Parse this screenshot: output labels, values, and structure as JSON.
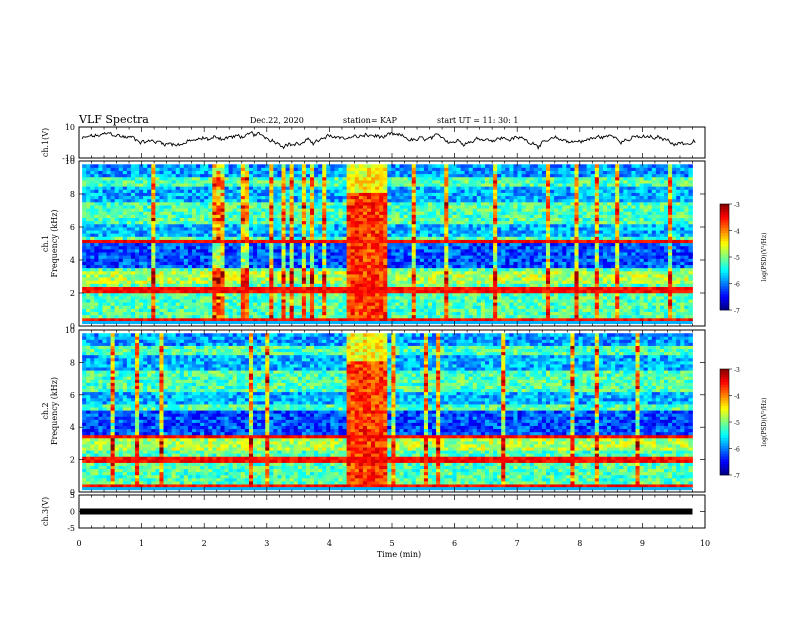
{
  "header": {
    "title": "VLF Spectra",
    "date": "Dec.22, 2020",
    "station": "station= KAP",
    "start": "start  UT =   11: 30: 1"
  },
  "chart_data": [
    {
      "type": "line",
      "panel": "ch1-waveform",
      "ylabel": "ch.1(V)",
      "ylim": [
        -10,
        10
      ],
      "yticks": [
        "10",
        "-10"
      ],
      "xlim": [
        0,
        10
      ],
      "note_series": "noisy waveform, mean ~2 V, varying between about -2 and 8 V"
    },
    {
      "type": "heatmap",
      "panel": "ch1-spectrogram",
      "ylabel": "ch.1\nFrequency  (kHz)",
      "ylim": [
        0,
        10
      ],
      "yticks": [
        "0",
        "2",
        "4",
        "6",
        "8",
        "10"
      ],
      "xlim": [
        0,
        10
      ],
      "colorbar": {
        "label": "log(PSD)(V²/Hz)",
        "range": [
          -7,
          -3
        ],
        "ticks": [
          "-3",
          "-4",
          "-5",
          "-6",
          "-7"
        ],
        "colormap": "jet"
      },
      "features": "broadband burst between ~4.3 and ~4.9 min; strong narrowband line near 5.2 kHz and 2.2 kHz"
    },
    {
      "type": "heatmap",
      "panel": "ch2-spectrogram",
      "ylabel": "ch.2\nFrequency  (kHz)",
      "ylim": [
        0,
        10
      ],
      "yticks": [
        "0",
        "2",
        "4",
        "6",
        "8",
        "10"
      ],
      "xlim": [
        0,
        10
      ],
      "colorbar": {
        "label": "log(PSD)(V²/Hz)",
        "range": [
          -7,
          -3
        ],
        "ticks": [
          "-3",
          "-4",
          "-5",
          "-6",
          "-7"
        ],
        "colormap": "jet"
      },
      "features": "broadband burst between ~4.3 and ~4.9 min; narrowband line near 2 kHz"
    },
    {
      "type": "line",
      "panel": "ch3-waveform",
      "ylabel": "ch.3(V)",
      "ylim": [
        -5,
        5
      ],
      "yticks": [
        "5",
        "0",
        "-5"
      ],
      "xlim": [
        0,
        10
      ],
      "note_series": "flat trace at ~0 V (thick band)"
    }
  ],
  "xaxis": {
    "label": "Time  (min)",
    "ticks": [
      "0",
      "1",
      "2",
      "3",
      "4",
      "5",
      "6",
      "7",
      "8",
      "9",
      "10"
    ]
  }
}
